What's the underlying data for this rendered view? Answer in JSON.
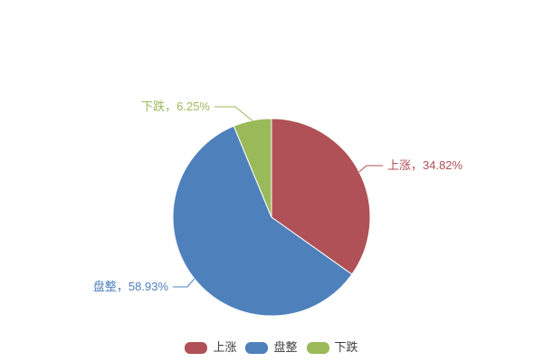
{
  "chart_data": {
    "type": "pie",
    "start_angle": "top",
    "direction": "clockwise",
    "unit": "%",
    "slices": [
      {
        "name": "上涨",
        "value": 34.82,
        "percent_label": "34.82%",
        "label": "上涨，34.82%",
        "color": "#AF5156"
      },
      {
        "name": "盘整",
        "value": 58.93,
        "percent_label": "58.93%",
        "label": "盘整，58.93%",
        "color": "#4E80BC"
      },
      {
        "name": "下跌",
        "value": 6.25,
        "percent_label": "6.25%",
        "label": "下跌，6.25%",
        "color": "#9ABA5A"
      }
    ],
    "legend": {
      "position": "bottom",
      "items": [
        "上涨",
        "盘整",
        "下跌"
      ]
    }
  },
  "colors": {
    "background": "#ffffff",
    "legend_text": "#3F3F3F"
  }
}
